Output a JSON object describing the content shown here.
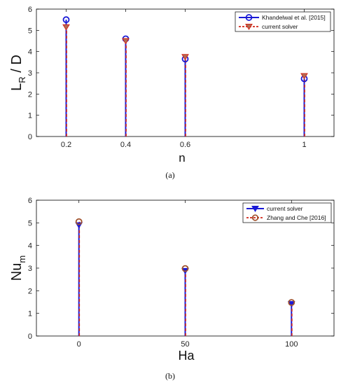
{
  "chart_data": [
    {
      "type": "stem",
      "panel_caption": "(a)",
      "xlabel": "n",
      "ylabel": "L_R / D",
      "x_tick_labels": [
        "0.2",
        "0.4",
        "0.6",
        "1"
      ],
      "y_tick_labels": [
        "0",
        "1",
        "2",
        "3",
        "4",
        "5",
        "6"
      ],
      "xlim": [
        0.1,
        1.1
      ],
      "ylim": [
        0,
        6
      ],
      "grid": false,
      "legend_position": "top-right",
      "x": [
        0.2,
        0.4,
        0.6,
        1.0
      ],
      "series": [
        {
          "name": "Khandelwal et al. [2015]",
          "marker": "circle",
          "color": "#1a1ad6",
          "line": "solid",
          "values": [
            5.5,
            4.6,
            3.65,
            2.72
          ]
        },
        {
          "name": "current solver",
          "marker": "triangle-down",
          "color": "#d3281a",
          "line": "dashed",
          "values": [
            5.15,
            4.5,
            3.75,
            2.85
          ]
        }
      ]
    },
    {
      "type": "stem",
      "panel_caption": "(b)",
      "xlabel": "Ha",
      "ylabel": "Nu_m",
      "x_tick_labels": [
        "0",
        "50",
        "100"
      ],
      "y_tick_labels": [
        "0",
        "1",
        "2",
        "3",
        "4",
        "5",
        "6"
      ],
      "xlim": [
        -20,
        120
      ],
      "ylim": [
        0,
        6
      ],
      "grid": false,
      "legend_position": "top-right",
      "x": [
        0,
        50,
        100
      ],
      "series": [
        {
          "name": "current solver",
          "marker": "triangle-down",
          "color": "#1a1ad6",
          "line": "solid",
          "values": [
            4.9,
            2.88,
            1.42
          ]
        },
        {
          "name": "Zhang and Che [2016]",
          "marker": "circle",
          "color": "#d3281a",
          "line": "dashed",
          "values": [
            5.05,
            2.98,
            1.48
          ]
        }
      ]
    }
  ]
}
